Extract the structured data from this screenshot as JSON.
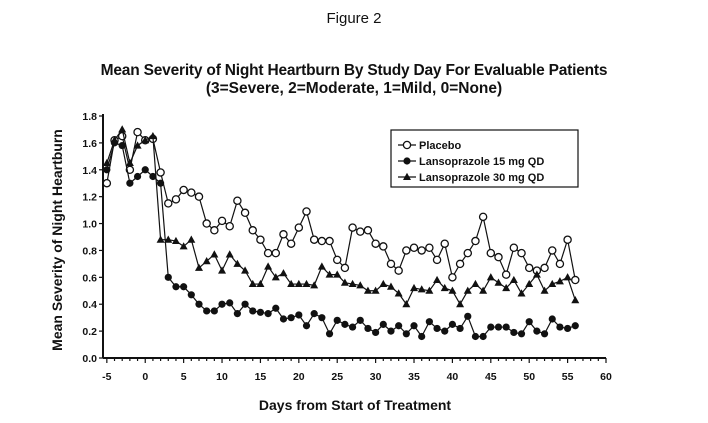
{
  "figure_label": "Figure 2",
  "chart_data": {
    "type": "line",
    "title": "Mean Severity of Night Heartburn By Study Day For Evaluable Patients",
    "subtitle": "(3=Severe, 2=Moderate, 1=Mild, 0=None)",
    "xlabel": "Days from Start of Treatment",
    "ylabel": "Mean Severity of Night Heartburn",
    "xlim": [
      -5,
      60
    ],
    "ylim": [
      0,
      1.8
    ],
    "xticks": [
      -5,
      0,
      5,
      10,
      15,
      20,
      25,
      30,
      35,
      40,
      45,
      50,
      55,
      60
    ],
    "yticks": [
      "0.0",
      "0.2",
      "0.4",
      "0.6",
      "0.8",
      "1.0",
      "1.2",
      "1.4",
      "1.6",
      "1.8"
    ],
    "grid": false,
    "legend_position": "top-right",
    "x": [
      -5,
      -4,
      -3,
      -2,
      -1,
      0,
      1,
      2,
      3,
      4,
      5,
      6,
      7,
      8,
      9,
      10,
      11,
      12,
      13,
      14,
      15,
      16,
      17,
      18,
      19,
      20,
      21,
      22,
      23,
      24,
      25,
      26,
      27,
      28,
      29,
      30,
      31,
      32,
      33,
      34,
      35,
      36,
      37,
      38,
      39,
      40,
      41,
      42,
      43,
      44,
      45,
      46,
      47,
      48,
      49,
      50,
      51,
      52,
      53,
      54,
      55,
      56
    ],
    "series": [
      {
        "name": "Placebo",
        "marker": "open-circle",
        "values": [
          1.3,
          1.62,
          1.65,
          1.4,
          1.68,
          1.62,
          1.63,
          1.38,
          1.15,
          1.18,
          1.25,
          1.23,
          1.2,
          1.0,
          0.95,
          1.02,
          0.98,
          1.17,
          1.08,
          0.95,
          0.88,
          0.78,
          0.78,
          0.92,
          0.85,
          0.97,
          1.09,
          0.88,
          0.87,
          0.87,
          0.73,
          0.67,
          0.97,
          0.94,
          0.95,
          0.85,
          0.83,
          0.7,
          0.65,
          0.8,
          0.82,
          0.8,
          0.82,
          0.73,
          0.85,
          0.6,
          0.7,
          0.78,
          0.87,
          1.05,
          0.78,
          0.75,
          0.62,
          0.82,
          0.78,
          0.67,
          0.65,
          0.67,
          0.8,
          0.7,
          0.88,
          0.58
        ]
      },
      {
        "name": "Lansoprazole 15 mg QD",
        "marker": "filled-circle",
        "values": [
          1.4,
          1.6,
          1.58,
          1.3,
          1.35,
          1.4,
          1.35,
          1.3,
          0.6,
          0.53,
          0.53,
          0.47,
          0.4,
          0.35,
          0.35,
          0.4,
          0.41,
          0.33,
          0.4,
          0.35,
          0.34,
          0.33,
          0.37,
          0.29,
          0.3,
          0.32,
          0.24,
          0.33,
          0.3,
          0.18,
          0.28,
          0.25,
          0.23,
          0.28,
          0.22,
          0.19,
          0.25,
          0.2,
          0.24,
          0.18,
          0.24,
          0.16,
          0.27,
          0.22,
          0.2,
          0.25,
          0.22,
          0.31,
          0.16,
          0.16,
          0.23,
          0.23,
          0.23,
          0.19,
          0.18,
          0.27,
          0.2,
          0.18,
          0.29,
          0.23,
          0.22,
          0.24
        ]
      },
      {
        "name": "Lansoprazole 30 mg QD",
        "marker": "filled-triangle",
        "values": [
          1.45,
          1.62,
          1.7,
          1.45,
          1.58,
          1.62,
          1.65,
          0.88,
          0.88,
          0.87,
          0.83,
          0.88,
          0.67,
          0.72,
          0.77,
          0.65,
          0.77,
          0.7,
          0.65,
          0.55,
          0.55,
          0.68,
          0.6,
          0.63,
          0.55,
          0.55,
          0.55,
          0.54,
          0.68,
          0.62,
          0.62,
          0.56,
          0.55,
          0.54,
          0.5,
          0.5,
          0.55,
          0.53,
          0.48,
          0.4,
          0.52,
          0.51,
          0.5,
          0.58,
          0.52,
          0.5,
          0.4,
          0.5,
          0.55,
          0.5,
          0.6,
          0.56,
          0.52,
          0.58,
          0.48,
          0.55,
          0.62,
          0.5,
          0.55,
          0.57,
          0.6,
          0.43
        ]
      }
    ]
  }
}
